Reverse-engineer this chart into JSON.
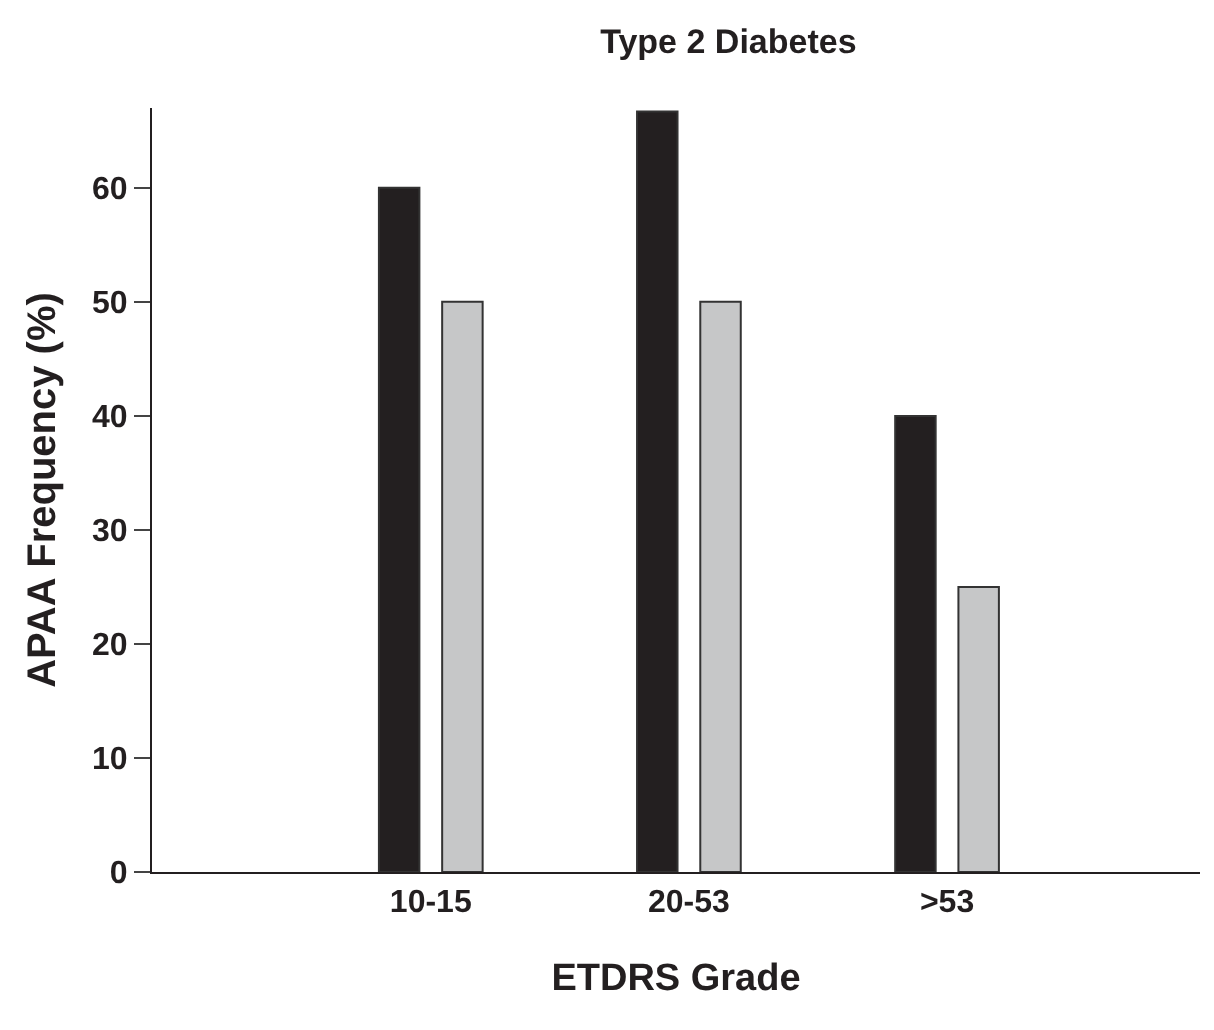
{
  "chart_data": {
    "type": "bar",
    "title": "Type 2 Diabetes",
    "xlabel": "ETDRS Grade",
    "ylabel": "APAA Frequency (%)",
    "categories": [
      "10-15",
      "20-53",
      ">53"
    ],
    "series": [
      {
        "color": "#231f20",
        "values": [
          60,
          66.7,
          40
        ]
      },
      {
        "color": "#c6c7c8",
        "values": [
          50,
          50,
          25
        ]
      }
    ],
    "ylim": [
      0,
      67
    ],
    "yticks": [
      0,
      10,
      20,
      30,
      40,
      50,
      60
    ]
  }
}
